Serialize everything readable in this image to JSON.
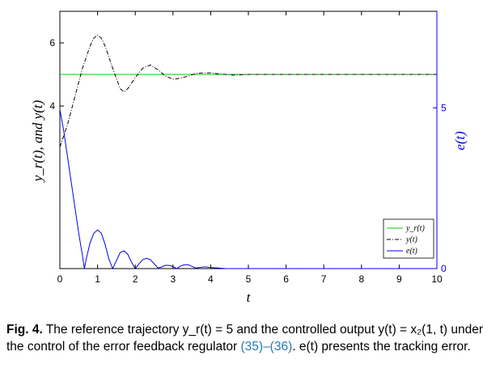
{
  "chart_data": {
    "type": "line",
    "xlabel": "t",
    "ylabel_left": "y_r(t), and y(t)",
    "ylabel_right": "e(t)",
    "xlim": [
      0,
      10
    ],
    "ylim_left": [
      -1.15,
      7.0
    ],
    "ylim_right": [
      0,
      8
    ],
    "x_ticks": [
      "0",
      "1",
      "2",
      "3",
      "4",
      "5",
      "6",
      "7",
      "8",
      "9",
      "10"
    ],
    "y_ticks_left": [
      "4",
      "6"
    ],
    "y_ticks_right": [
      "0",
      "5"
    ],
    "grid": false,
    "legend_position": "bottom-right",
    "colors": {
      "yr": "#00cc00",
      "y": "#000000",
      "e": "#0000ee",
      "right_axis": "#0000ee"
    },
    "series": [
      {
        "name": "y_r(t)",
        "axis": "left",
        "style": "solid",
        "color": "#00cc00",
        "x": [
          0,
          10
        ],
        "y": [
          5,
          5
        ]
      },
      {
        "name": "y(t)",
        "axis": "left",
        "style": "dashdot",
        "color": "#000000",
        "x": [
          0,
          0.2,
          0.4,
          0.6,
          0.8,
          0.9,
          1.0,
          1.1,
          1.2,
          1.4,
          1.6,
          1.7,
          1.8,
          2.0,
          2.2,
          2.4,
          2.6,
          2.8,
          3.0,
          3.2,
          3.4,
          3.6,
          3.8,
          4.0,
          4.2,
          4.4,
          4.6,
          5.0,
          6.0,
          7.0,
          8.0,
          9.0,
          10.0
        ],
        "y": [
          2.7,
          3.4,
          4.3,
          5.2,
          5.9,
          6.15,
          6.25,
          6.15,
          5.9,
          5.2,
          4.55,
          4.45,
          4.55,
          4.9,
          5.2,
          5.3,
          5.15,
          4.95,
          4.85,
          4.88,
          4.95,
          5.03,
          5.05,
          5.05,
          5.02,
          5.0,
          4.98,
          5.0,
          5.0,
          5.0,
          5.0,
          5.0,
          5.0
        ]
      },
      {
        "name": "e(t)",
        "axis": "right",
        "style": "solid",
        "color": "#0000ee",
        "x": [
          0,
          0.1,
          0.2,
          0.3,
          0.4,
          0.5,
          0.6,
          0.65,
          0.7,
          0.8,
          0.9,
          1.0,
          1.1,
          1.2,
          1.3,
          1.4,
          1.5,
          1.6,
          1.7,
          1.8,
          1.9,
          2.0,
          2.1,
          2.2,
          2.3,
          2.4,
          2.5,
          2.6,
          2.7,
          2.8,
          2.9,
          3.0,
          3.1,
          3.2,
          3.3,
          3.4,
          3.5,
          3.6,
          3.7,
          3.8,
          3.9,
          4.0,
          4.2,
          4.4,
          5.0,
          10.0
        ],
        "y": [
          4.95,
          4.3,
          3.5,
          2.7,
          1.9,
          1.1,
          0.4,
          0.0,
          0.3,
          0.8,
          1.1,
          1.2,
          1.1,
          0.75,
          0.3,
          0.0,
          0.25,
          0.5,
          0.55,
          0.45,
          0.2,
          0.0,
          0.15,
          0.28,
          0.32,
          0.28,
          0.15,
          0.02,
          0.05,
          0.1,
          0.1,
          0.06,
          0.0,
          0.08,
          0.12,
          0.12,
          0.07,
          0.02,
          0.03,
          0.05,
          0.05,
          0.03,
          0.02,
          0.0,
          0.0,
          0.0
        ]
      }
    ],
    "legend": [
      "y_r(t)",
      "y(t)",
      "e(t)"
    ]
  },
  "caption": {
    "label": "Fig. 4.",
    "text_before": "The reference trajectory y_r(t) = 5 and the controlled output y(t) = x₂(1, t) under the control of the error feedback regulator ",
    "refs": "(35)–(36)",
    "text_after": ". e(t) presents the tracking error."
  }
}
